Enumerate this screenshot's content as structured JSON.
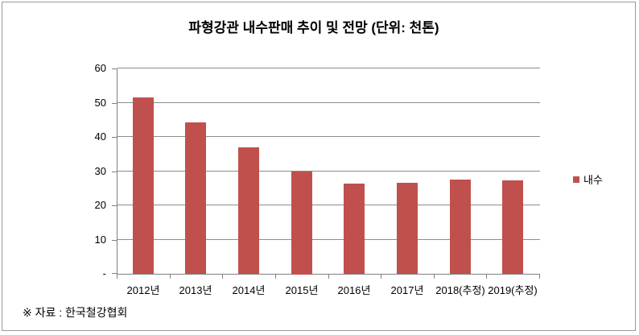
{
  "page": {
    "frame_border_color": "#999999",
    "background_color": "#ffffff"
  },
  "chart_data": {
    "type": "bar",
    "title": "파형강관 내수판매 추이 및 전망 (단위: 천톤)",
    "categories": [
      "2012년",
      "2013년",
      "2014년",
      "2015년",
      "2016년",
      "2017년",
      "2018(추정)",
      "2019(추정)"
    ],
    "series": [
      {
        "name": "내수",
        "color": "#C0504D",
        "values": [
          51.6,
          44.3,
          37.0,
          30.0,
          26.3,
          26.6,
          27.6,
          27.4
        ]
      }
    ],
    "ylim": [
      0,
      60
    ],
    "y_ticks": [
      {
        "value": 0,
        "label": "-"
      },
      {
        "value": 10,
        "label": "10"
      },
      {
        "value": 20,
        "label": "20"
      },
      {
        "value": 30,
        "label": "30"
      },
      {
        "value": 40,
        "label": "40"
      },
      {
        "value": 50,
        "label": "50"
      },
      {
        "value": 60,
        "label": "60"
      }
    ],
    "grid": "horizontal-major",
    "legend_position": "right",
    "gridline_color": "#8C8C8C",
    "axis_color": "#808080",
    "text_color": "#000000"
  },
  "footer": {
    "source_note": "※ 자료 : 한국철강협회"
  }
}
